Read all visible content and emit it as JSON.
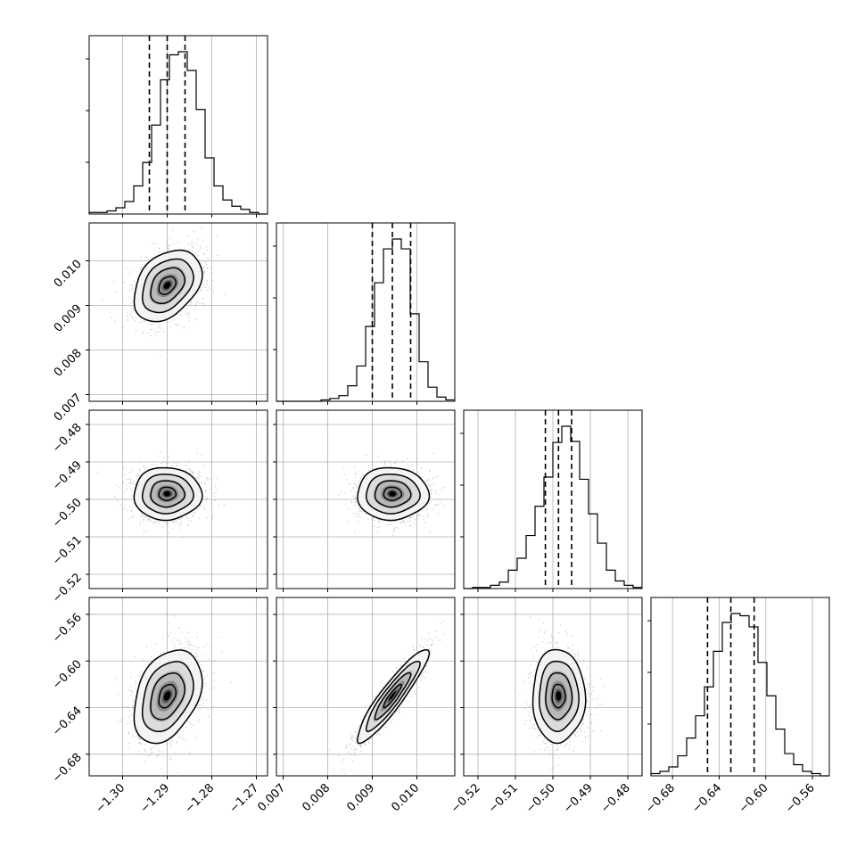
{
  "chart_data": {
    "type": "corner",
    "grid": true,
    "colors": {
      "hist": "#000000",
      "contour": "#000000",
      "points": "#9a9a9a",
      "density_max": "#000000",
      "grid": "#b0b0b0",
      "quantile_line": "#000000"
    },
    "parameters": [
      {
        "range": [
          -1.3075,
          -1.2675
        ],
        "ticks": [
          -1.3,
          -1.29,
          -1.28,
          -1.27
        ],
        "tick_labels": [
          "−1.30",
          "−1.29",
          "−1.28",
          "−1.27"
        ],
        "quantiles": [
          -1.294,
          -1.29,
          -1.286
        ],
        "mean": -1.29,
        "sd": 0.0038
      },
      {
        "range": [
          0.00685,
          0.01085
        ],
        "ticks": [
          0.007,
          0.008,
          0.009,
          0.01
        ],
        "tick_labels": [
          "0.007",
          "0.008",
          "0.009",
          "0.010"
        ],
        "quantiles": [
          0.009,
          0.00945,
          0.00986
        ],
        "mean": 0.00945,
        "sd": 0.0004
      },
      {
        "range": [
          -0.5238,
          -0.4762
        ],
        "ticks": [
          -0.52,
          -0.51,
          -0.5,
          -0.49,
          -0.48
        ],
        "tick_labels": [
          "−0.52",
          "−0.51",
          "−0.50",
          "−0.49",
          "−0.48"
        ],
        "quantiles": [
          -0.502,
          -0.4985,
          -0.495
        ],
        "mean": -0.4985,
        "sd": 0.0035
      },
      {
        "range": [
          -0.6985,
          -0.5455
        ],
        "ticks": [
          -0.68,
          -0.64,
          -0.6,
          -0.56
        ],
        "tick_labels": [
          "−0.68",
          "−0.64",
          "−0.60",
          "−0.56"
        ],
        "quantiles": [
          -0.65,
          -0.63,
          -0.61
        ],
        "mean": -0.63,
        "sd": 0.02
      }
    ],
    "diagonal_histograms": [
      [
        1,
        1,
        2,
        4,
        8,
        18,
        33,
        57,
        86,
        102,
        104,
        92,
        67,
        36,
        18,
        9,
        5,
        3,
        1,
        0
      ],
      [
        0,
        0,
        0,
        0,
        0,
        1,
        2,
        4,
        11,
        25,
        53,
        84,
        108,
        115,
        108,
        62,
        28,
        10,
        3,
        1
      ],
      [
        0,
        1,
        1,
        3,
        6,
        17,
        28,
        49,
        76,
        103,
        135,
        150,
        136,
        101,
        69,
        42,
        17,
        7,
        3,
        1
      ],
      [
        1,
        2,
        4,
        9,
        17,
        27,
        40,
        56,
        69,
        73,
        72,
        67,
        51,
        36,
        21,
        10,
        5,
        2,
        1,
        0
      ]
    ],
    "correlations": {
      "1-0": 0.35,
      "2-0": 0.0,
      "2-1": 0.0,
      "3-0": 0.35,
      "3-1": 0.92,
      "3-2": 0.0
    },
    "contour_levels_sigma": [
      0.5,
      1.0,
      1.5,
      2.0
    ]
  }
}
